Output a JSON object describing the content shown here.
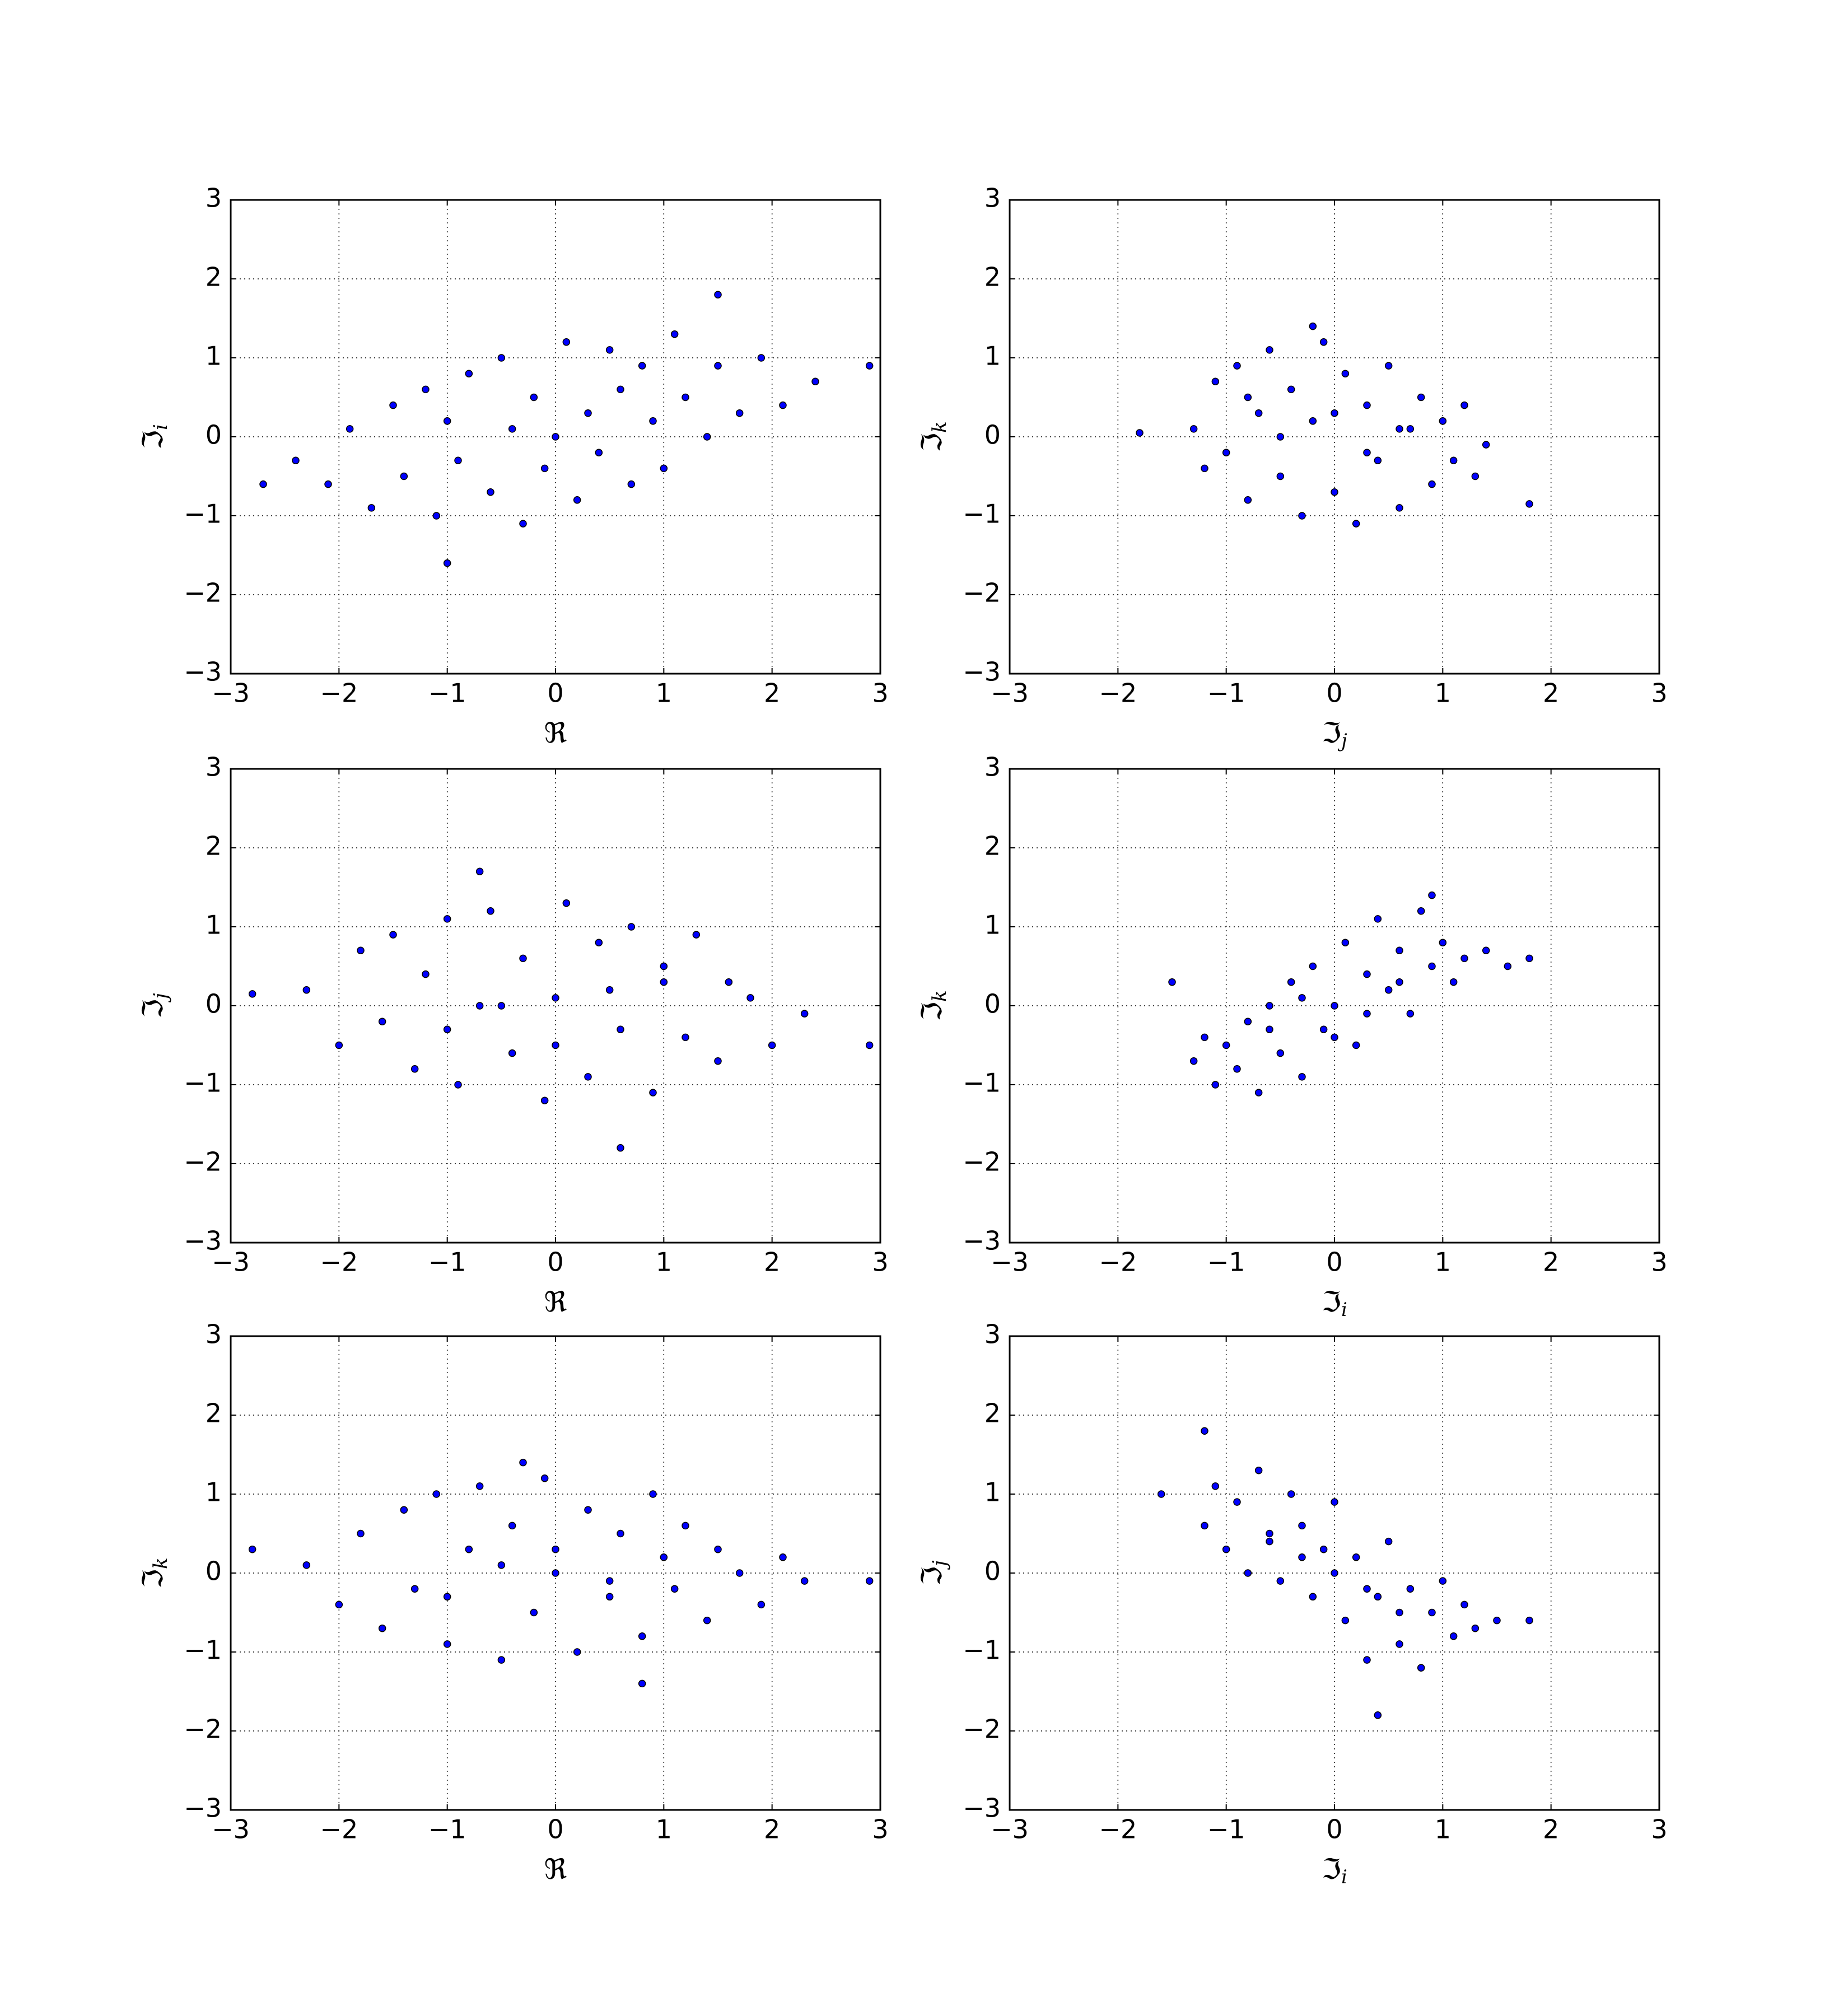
{
  "chart_data": [
    {
      "type": "scatter",
      "xlabel": "ℜ",
      "ylabel": "ℑ",
      "ylabel_sub": "i",
      "color": "#0000ff",
      "edgecolor": "#000000",
      "grid": true,
      "xlim": [
        -3,
        3
      ],
      "ylim": [
        -3,
        3
      ],
      "xticks": [
        {
          "value": -3,
          "label": "−3"
        },
        {
          "value": -2,
          "label": "−2"
        },
        {
          "value": -1,
          "label": "−1"
        },
        0,
        1,
        2,
        3
      ],
      "yticks": [
        {
          "value": -3,
          "label": "−3"
        },
        {
          "value": -2,
          "label": "−2"
        },
        {
          "value": -1,
          "label": "−1"
        },
        0,
        1,
        2,
        3
      ],
      "x": [
        -2.4,
        -2.1,
        -1.9,
        -1.7,
        -1.5,
        -1.4,
        -1.2,
        -1.1,
        -1.0,
        -0.9,
        -0.8,
        -0.6,
        -0.5,
        -0.4,
        -0.3,
        -0.2,
        -0.1,
        0,
        0.1,
        0.2,
        0.3,
        0.4,
        0.5,
        0.6,
        0.7,
        0.8,
        0.9,
        1.0,
        1.1,
        1.2,
        1.4,
        1.5,
        1.7,
        1.9,
        2.1,
        2.4,
        -2.7,
        2.9,
        1.5,
        -1.0
      ],
      "y": [
        -0.3,
        -0.6,
        0.1,
        -0.9,
        0.4,
        -0.5,
        0.6,
        -1.0,
        0.2,
        -0.3,
        0.8,
        -0.7,
        1.0,
        0.1,
        -1.1,
        0.5,
        -0.4,
        0.0,
        1.2,
        -0.8,
        0.3,
        -0.2,
        1.1,
        0.6,
        -0.6,
        0.9,
        0.2,
        -0.4,
        1.3,
        0.5,
        0.0,
        0.9,
        0.3,
        1.0,
        0.4,
        0.7,
        -0.6,
        0.9,
        1.8,
        -1.6
      ]
    },
    {
      "type": "scatter",
      "xlabel": "ℑ",
      "xlabel_sub": "j",
      "ylabel": "ℑ",
      "ylabel_sub": "k",
      "color": "#0000ff",
      "edgecolor": "#000000",
      "grid": true,
      "xlim": [
        -3,
        3
      ],
      "ylim": [
        -3,
        3
      ],
      "xticks": [
        {
          "value": -3,
          "label": "−3"
        },
        {
          "value": -2,
          "label": "−2"
        },
        {
          "value": -1,
          "label": "−1"
        },
        0,
        1,
        2,
        3
      ],
      "yticks": [
        {
          "value": -3,
          "label": "−3"
        },
        {
          "value": -2,
          "label": "−2"
        },
        {
          "value": -1,
          "label": "−1"
        },
        0,
        1,
        2,
        3
      ],
      "x": [
        -1.3,
        -1.2,
        -1.1,
        -1.0,
        -0.9,
        -0.8,
        -0.7,
        -0.6,
        -0.5,
        -0.4,
        -0.3,
        -0.2,
        -0.1,
        0,
        0.1,
        0.2,
        0.3,
        0.4,
        0.5,
        0.6,
        0.7,
        0.8,
        0.9,
        1.0,
        1.1,
        1.2,
        1.3,
        1.4,
        -0.5,
        0.0,
        0.3,
        -0.8,
        0.6,
        -1.8,
        1.8,
        -0.2
      ],
      "y": [
        0.1,
        -0.4,
        0.7,
        -0.2,
        0.9,
        -0.8,
        0.3,
        1.1,
        -0.5,
        0.6,
        -1.0,
        0.2,
        1.2,
        -0.7,
        0.8,
        -1.1,
        0.4,
        -0.3,
        0.9,
        -0.9,
        0.1,
        0.5,
        -0.6,
        0.2,
        -0.3,
        0.4,
        -0.5,
        -0.1,
        0.0,
        0.3,
        -0.2,
        0.5,
        0.1,
        0.05,
        -0.85,
        1.4
      ]
    },
    {
      "type": "scatter",
      "xlabel": "ℜ",
      "ylabel": "ℑ",
      "ylabel_sub": "j",
      "color": "#0000ff",
      "edgecolor": "#000000",
      "grid": true,
      "xlim": [
        -3,
        3
      ],
      "ylim": [
        -3,
        3
      ],
      "xticks": [
        {
          "value": -3,
          "label": "−3"
        },
        {
          "value": -2,
          "label": "−2"
        },
        {
          "value": -1,
          "label": "−1"
        },
        0,
        1,
        2,
        3
      ],
      "yticks": [
        {
          "value": -3,
          "label": "−3"
        },
        {
          "value": -2,
          "label": "−2"
        },
        {
          "value": -1,
          "label": "−1"
        },
        0,
        1,
        2,
        3
      ],
      "x": [
        -2.3,
        -2.0,
        -1.8,
        -1.6,
        -1.5,
        -1.3,
        -1.2,
        -1.0,
        -0.9,
        -0.7,
        -0.6,
        -0.4,
        -0.3,
        -0.1,
        0,
        0.1,
        0.3,
        0.4,
        0.6,
        0.7,
        0.9,
        1.0,
        1.2,
        1.3,
        1.5,
        1.6,
        1.8,
        2.0,
        2.3,
        -0.5,
        0.5,
        -1.0,
        1.0,
        0.0,
        -2.8,
        2.9,
        0.6,
        -0.7
      ],
      "y": [
        0.2,
        -0.5,
        0.7,
        -0.2,
        0.9,
        -0.8,
        0.4,
        1.1,
        -1.0,
        0.0,
        1.2,
        -0.6,
        0.6,
        -1.2,
        0.1,
        1.3,
        -0.9,
        0.8,
        -0.3,
        1.0,
        -1.1,
        0.5,
        -0.4,
        0.9,
        -0.7,
        0.3,
        0.1,
        -0.5,
        -0.1,
        0.0,
        0.2,
        -0.3,
        0.3,
        -0.5,
        0.15,
        -0.5,
        -1.8,
        1.7
      ]
    },
    {
      "type": "scatter",
      "xlabel": "ℑ",
      "xlabel_sub": "i",
      "ylabel": "ℑ",
      "ylabel_sub": "k",
      "color": "#0000ff",
      "edgecolor": "#000000",
      "grid": true,
      "xlim": [
        -3,
        3
      ],
      "ylim": [
        -3,
        3
      ],
      "xticks": [
        {
          "value": -3,
          "label": "−3"
        },
        {
          "value": -2,
          "label": "−2"
        },
        {
          "value": -1,
          "label": "−1"
        },
        0,
        1,
        2,
        3
      ],
      "yticks": [
        {
          "value": -3,
          "label": "−3"
        },
        {
          "value": -2,
          "label": "−2"
        },
        {
          "value": -1,
          "label": "−1"
        },
        0,
        1,
        2,
        3
      ],
      "x": [
        -1.3,
        -1.2,
        -1.1,
        -1.0,
        -0.9,
        -0.8,
        -0.7,
        -0.6,
        -0.5,
        -0.4,
        -0.3,
        -0.2,
        -0.1,
        0,
        0.1,
        0.2,
        0.3,
        0.4,
        0.5,
        0.6,
        0.7,
        0.8,
        0.9,
        1.0,
        1.1,
        1.2,
        1.4,
        1.6,
        -0.3,
        0.3,
        0.0,
        -0.6,
        0.6,
        -1.5,
        1.8,
        0.9
      ],
      "y": [
        -0.7,
        -0.4,
        -1.0,
        -0.5,
        -0.8,
        -0.2,
        -1.1,
        0.0,
        -0.6,
        0.3,
        -0.9,
        0.5,
        -0.3,
        0.0,
        0.8,
        -0.5,
        0.4,
        1.1,
        0.2,
        0.7,
        -0.1,
        1.2,
        0.5,
        0.8,
        0.3,
        0.6,
        0.7,
        0.5,
        0.1,
        -0.1,
        -0.4,
        -0.3,
        0.3,
        0.3,
        0.6,
        1.4
      ]
    },
    {
      "type": "scatter",
      "xlabel": "ℜ",
      "ylabel": "ℑ",
      "ylabel_sub": "k",
      "color": "#0000ff",
      "edgecolor": "#000000",
      "grid": true,
      "xlim": [
        -3,
        3
      ],
      "ylim": [
        -3,
        3
      ],
      "xticks": [
        {
          "value": -3,
          "label": "−3"
        },
        {
          "value": -2,
          "label": "−2"
        },
        {
          "value": -1,
          "label": "−1"
        },
        0,
        1,
        2,
        3
      ],
      "yticks": [
        {
          "value": -3,
          "label": "−3"
        },
        {
          "value": -2,
          "label": "−2"
        },
        {
          "value": -1,
          "label": "−1"
        },
        0,
        1,
        2,
        3
      ],
      "x": [
        -2.3,
        -2.0,
        -1.8,
        -1.6,
        -1.4,
        -1.3,
        -1.1,
        -1.0,
        -0.8,
        -0.7,
        -0.5,
        -0.4,
        -0.2,
        -0.1,
        0,
        0.2,
        0.3,
        0.5,
        0.6,
        0.8,
        0.9,
        1.1,
        1.2,
        1.4,
        1.5,
        1.7,
        1.9,
        2.1,
        2.3,
        -0.5,
        0.5,
        0.0,
        -1.0,
        1.0,
        -2.8,
        2.9,
        -0.3,
        0.8
      ],
      "y": [
        0.1,
        -0.4,
        0.5,
        -0.7,
        0.8,
        -0.2,
        1.0,
        -0.9,
        0.3,
        1.1,
        -1.1,
        0.6,
        -0.5,
        1.2,
        0.0,
        -1.0,
        0.8,
        -0.3,
        0.5,
        -0.8,
        1.0,
        -0.2,
        0.6,
        -0.6,
        0.3,
        0.0,
        -0.4,
        0.2,
        -0.1,
        0.1,
        -0.1,
        0.3,
        -0.3,
        0.2,
        0.3,
        -0.1,
        1.4,
        -1.4
      ]
    },
    {
      "type": "scatter",
      "xlabel": "ℑ",
      "xlabel_sub": "i",
      "ylabel": "ℑ",
      "ylabel_sub": "j",
      "color": "#0000ff",
      "edgecolor": "#000000",
      "grid": true,
      "xlim": [
        -3,
        3
      ],
      "ylim": [
        -3,
        3
      ],
      "xticks": [
        {
          "value": -3,
          "label": "−3"
        },
        {
          "value": -2,
          "label": "−2"
        },
        {
          "value": -1,
          "label": "−1"
        },
        0,
        1,
        2,
        3
      ],
      "yticks": [
        {
          "value": -3,
          "label": "−3"
        },
        {
          "value": -2,
          "label": "−2"
        },
        {
          "value": -1,
          "label": "−1"
        },
        0,
        1,
        2,
        3
      ],
      "x": [
        -1.2,
        -1.1,
        -1.0,
        -0.9,
        -0.8,
        -0.7,
        -0.6,
        -0.5,
        -0.4,
        -0.3,
        -0.2,
        -0.1,
        0,
        0.1,
        0.2,
        0.3,
        0.4,
        0.5,
        0.6,
        0.7,
        0.8,
        0.9,
        1.0,
        1.1,
        1.2,
        1.3,
        1.5,
        -0.3,
        0.3,
        0.0,
        -0.6,
        0.6,
        -1.6,
        1.8,
        -1.2,
        0.4
      ],
      "y": [
        0.6,
        1.1,
        0.3,
        0.9,
        0.0,
        1.3,
        0.4,
        -0.1,
        1.0,
        0.6,
        -0.3,
        0.3,
        0.9,
        -0.6,
        0.2,
        -1.1,
        -0.3,
        0.4,
        -0.9,
        -0.2,
        -1.2,
        -0.5,
        -0.1,
        -0.8,
        -0.4,
        -0.7,
        -0.6,
        0.2,
        -0.2,
        0.0,
        0.5,
        -0.5,
        1.0,
        -0.6,
        1.8,
        -1.8
      ]
    }
  ]
}
